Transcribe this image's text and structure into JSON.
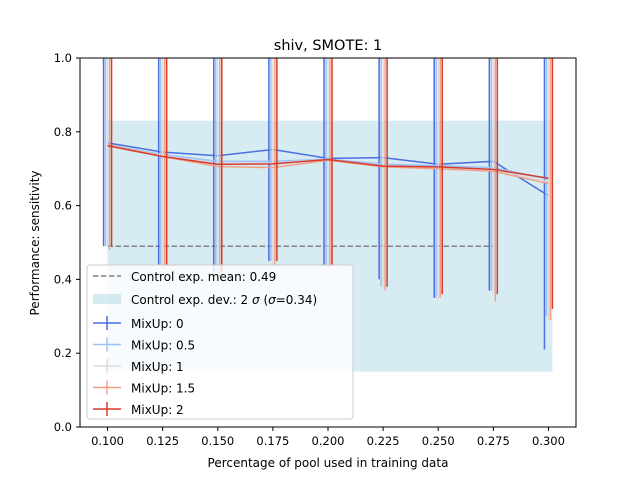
{
  "chart_data": {
    "type": "line",
    "title": "shiv, SMOTE: 1",
    "xlabel": "Percentage of pool used in training data",
    "ylabel": "Performance: sensitivity",
    "xlim": [
      0.0875,
      0.3125
    ],
    "ylim": [
      0.0,
      1.0
    ],
    "x": [
      0.1,
      0.125,
      0.15,
      0.175,
      0.2,
      0.225,
      0.25,
      0.275,
      0.3
    ],
    "xtick_labels": [
      "0.100",
      "0.125",
      "0.150",
      "0.175",
      "0.200",
      "0.225",
      "0.250",
      "0.275",
      "0.300"
    ],
    "yticks": [
      0.0,
      0.2,
      0.4,
      0.6,
      0.8,
      1.0
    ],
    "ytick_labels": [
      "0.0",
      "0.2",
      "0.4",
      "0.6",
      "0.8",
      "1.0"
    ],
    "grid": false,
    "legend_position": "lower-left",
    "control": {
      "label": "Control exp. mean: 0.49",
      "mean": 0.49,
      "color": "#808080",
      "x_range": [
        0.1,
        0.275
      ]
    },
    "control_band": {
      "label_prefix": "Control exp. dev.: 2 ",
      "label_sigma": "σ",
      "label_suffix": " (",
      "label_sigma2": "σ",
      "label_end": "=0.34)",
      "lower": 0.15,
      "upper": 0.83,
      "x_range": [
        0.1,
        0.3
      ],
      "color": "#add8e6"
    },
    "series": [
      {
        "name": "MixUp: 0",
        "color": "#4a6fe3",
        "values": [
          0.77,
          0.745,
          0.735,
          0.752,
          0.728,
          0.73,
          0.712,
          0.72,
          0.627
        ],
        "lower": [
          0.49,
          0.44,
          0.42,
          0.45,
          0.44,
          0.4,
          0.35,
          0.37,
          0.21
        ]
      },
      {
        "name": "MixUp: 0.5",
        "color": "#9fc0f5",
        "values": [
          0.765,
          0.738,
          0.72,
          0.72,
          0.726,
          0.712,
          0.708,
          0.703,
          0.672
        ],
        "lower": [
          0.49,
          0.44,
          0.42,
          0.45,
          0.44,
          0.38,
          0.35,
          0.37,
          0.3
        ]
      },
      {
        "name": "MixUp: 1",
        "color": "#dddddd",
        "values": [
          0.762,
          0.735,
          0.712,
          0.715,
          0.725,
          0.707,
          0.703,
          0.698,
          0.665
        ],
        "lower": [
          0.49,
          0.43,
          0.41,
          0.44,
          0.43,
          0.37,
          0.35,
          0.36,
          0.29
        ]
      },
      {
        "name": "MixUp: 1.5",
        "color": "#f2a084",
        "values": [
          0.765,
          0.733,
          0.706,
          0.703,
          0.723,
          0.705,
          0.7,
          0.693,
          0.66
        ],
        "lower": [
          0.48,
          0.43,
          0.41,
          0.44,
          0.43,
          0.37,
          0.35,
          0.34,
          0.29
        ]
      },
      {
        "name": "MixUp: 2",
        "color": "#d63b2e",
        "values": [
          0.762,
          0.733,
          0.712,
          0.713,
          0.725,
          0.707,
          0.705,
          0.698,
          0.674
        ],
        "lower": [
          0.49,
          0.44,
          0.42,
          0.45,
          0.44,
          0.38,
          0.36,
          0.36,
          0.32
        ]
      }
    ]
  }
}
